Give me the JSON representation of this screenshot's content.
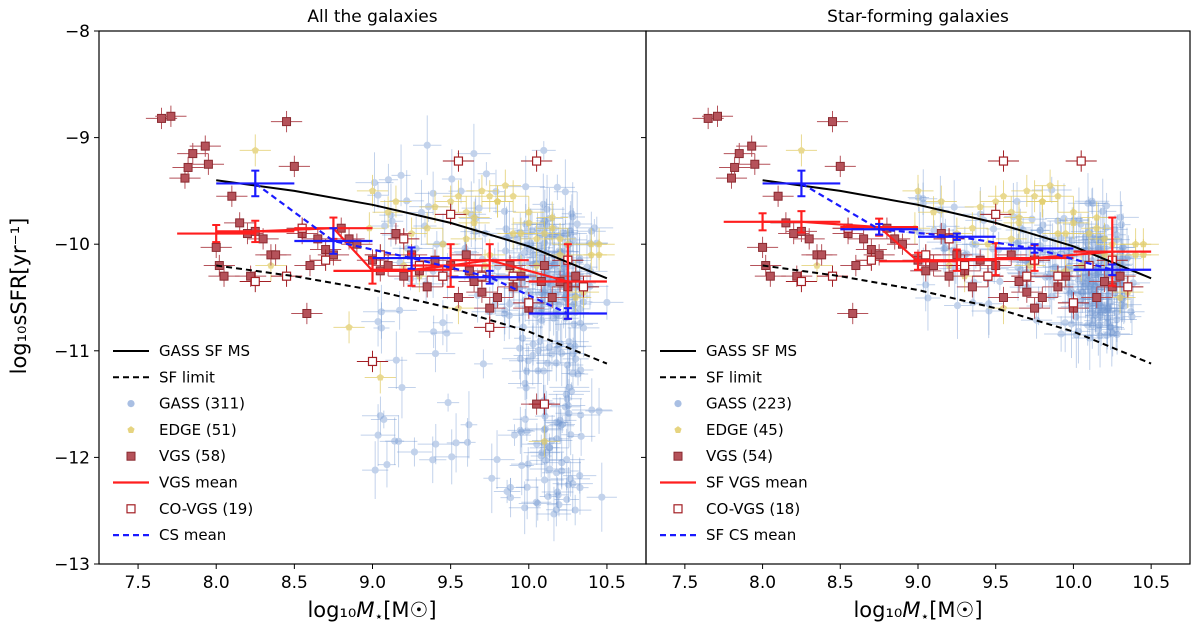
{
  "figure": {
    "ylabel": "log₁₀sSFR[yr⁻¹]",
    "xlabel_prefix": "log₁₀",
    "xlabel_symbol": "M",
    "xlabel_sub": "⋆",
    "xlabel_unit": "[M☉]"
  },
  "colors": {
    "gass": "#6f95d0",
    "edge": "#e2cd6a",
    "vgs": "#b5525a",
    "vgs_mean": "#ff1e1e",
    "cs_mean": "#1a1aff",
    "gass_ms": "#000000",
    "co_vgs": "#a31f24"
  },
  "chart_data": [
    {
      "type": "scatter",
      "title": "All the galaxies",
      "xlim": [
        7.25,
        10.75
      ],
      "ylim": [
        -13,
        -8
      ],
      "xticks": [
        "7.5",
        "8.0",
        "8.5",
        "9.0",
        "9.5",
        "10.0",
        "10.5"
      ],
      "yticks": [
        "−8",
        "−9",
        "−10",
        "−11",
        "−12",
        "−13"
      ],
      "xtick_values": [
        7.5,
        8.0,
        8.5,
        9.0,
        9.5,
        10.0,
        10.5
      ],
      "ytick_values": [
        -8,
        -9,
        -10,
        -11,
        -12,
        -13
      ],
      "legend": {
        "position": "lower-left",
        "entries": [
          {
            "key": "gass_ms",
            "label": "GASS SF MS"
          },
          {
            "key": "sf_limit",
            "label": "SF limit"
          },
          {
            "key": "gass",
            "label": "GASS (311)"
          },
          {
            "key": "edge",
            "label": "EDGE (51)"
          },
          {
            "key": "vgs",
            "label": "VGS (58)"
          },
          {
            "key": "vgs_mean",
            "label": "VGS mean"
          },
          {
            "key": "co_vgs",
            "label": "CO-VGS (19)"
          },
          {
            "key": "cs_mean",
            "label": "CS mean"
          }
        ]
      },
      "gass_ms_line": {
        "x": [
          8.0,
          8.5,
          9.0,
          9.5,
          10.0,
          10.5
        ],
        "y": [
          -9.4,
          -9.5,
          -9.63,
          -9.8,
          -10.02,
          -10.32
        ]
      },
      "sf_limit_line": {
        "x": [
          8.0,
          8.5,
          9.0,
          9.5,
          10.0,
          10.5
        ],
        "y": [
          -10.2,
          -10.3,
          -10.43,
          -10.6,
          -10.82,
          -11.12
        ]
      },
      "vgs_mean": {
        "x": [
          8.0,
          8.25,
          8.75,
          9.0,
          9.25,
          9.5,
          9.75,
          10.25
        ],
        "y": [
          -9.9,
          -9.88,
          -9.85,
          -10.25,
          -10.24,
          -10.2,
          -10.15,
          -10.35
        ],
        "yerr": [
          0.08,
          0.1,
          0.1,
          0.12,
          0.15,
          0.2,
          0.15,
          0.35
        ],
        "xerr": [
          0.25,
          0.25,
          0.25,
          0.25,
          0.25,
          0.25,
          0.25,
          0.25
        ]
      },
      "cs_mean": {
        "x": [
          8.25,
          8.75,
          9.25,
          9.75,
          10.25
        ],
        "y": [
          -9.43,
          -9.97,
          -10.13,
          -10.31,
          -10.65
        ],
        "yerr": [
          0.12,
          0.12,
          0.1,
          0.06,
          0.05
        ],
        "xerr": [
          0.25,
          0.25,
          0.25,
          0.25,
          0.25
        ]
      },
      "vgs_points": {
        "x": [
          7.65,
          7.71,
          7.8,
          7.82,
          7.85,
          7.93,
          7.95,
          8.0,
          8.02,
          8.05,
          8.1,
          8.15,
          8.2,
          8.25,
          8.3,
          8.35,
          8.45,
          8.5,
          8.55,
          8.6,
          8.65,
          8.7,
          8.75,
          8.8,
          8.85,
          8.9,
          9.0,
          9.05,
          9.1,
          9.15,
          9.2,
          9.25,
          9.3,
          9.35,
          9.4,
          9.45,
          9.5,
          9.55,
          9.6,
          9.65,
          9.7,
          9.75,
          9.8,
          9.9,
          9.95,
          10.0,
          10.05,
          10.1,
          10.15,
          10.2,
          10.25,
          10.3,
          8.22,
          8.38,
          8.58,
          9.62,
          9.88,
          10.08
        ],
        "y": [
          -8.82,
          -8.8,
          -9.38,
          -9.28,
          -9.15,
          -9.08,
          -9.25,
          -10.03,
          -10.2,
          -10.3,
          -9.55,
          -9.8,
          -9.9,
          -9.88,
          -9.95,
          -10.1,
          -8.85,
          -9.27,
          -9.9,
          -10.2,
          -9.95,
          -10.05,
          -10.1,
          -9.85,
          -9.95,
          -10.0,
          -10.15,
          -10.25,
          -10.2,
          -9.9,
          -10.3,
          -10.1,
          -10.25,
          -10.4,
          -10.15,
          -10.3,
          -10.2,
          -10.5,
          -10.1,
          -10.35,
          -10.45,
          -10.6,
          -10.5,
          -10.4,
          -10.3,
          -10.6,
          -11.5,
          -10.2,
          -10.5,
          -10.35,
          -10.4,
          -10.3,
          -10.3,
          -10.1,
          -10.65,
          -10.25,
          -10.2,
          -10.35
        ],
        "xerr": 0.1,
        "yerr": 0.1
      },
      "co_vgs_points": {
        "x": [
          8.25,
          8.45,
          8.55,
          8.7,
          9.0,
          9.05,
          9.2,
          9.3,
          9.45,
          9.5,
          9.55,
          9.7,
          9.75,
          9.9,
          10.0,
          10.05,
          10.1,
          10.25,
          10.35
        ],
        "y": [
          -10.35,
          -10.3,
          -9.85,
          -10.15,
          -11.1,
          -10.1,
          -9.95,
          -10.2,
          -10.3,
          -9.72,
          -9.22,
          -10.3,
          -10.78,
          -10.3,
          -10.55,
          -9.22,
          -11.5,
          -10.15,
          -10.4
        ],
        "xerr": 0.1,
        "yerr": 0.1
      },
      "edge_points": {
        "x": [
          8.25,
          8.85,
          9.05,
          9.15,
          9.25,
          9.35,
          9.45,
          9.5,
          9.55,
          9.6,
          9.65,
          9.7,
          9.75,
          9.8,
          9.85,
          9.9,
          9.95,
          10.0,
          10.05,
          10.1,
          10.15,
          10.2,
          10.25,
          10.3,
          10.35,
          10.4,
          10.45,
          8.35,
          9.0,
          9.3,
          9.55,
          9.72,
          9.95,
          10.1,
          10.3,
          10.45,
          8.98,
          9.1,
          9.9,
          10.2,
          9.4,
          9.65,
          9.8,
          10.0,
          10.15,
          10.4,
          9.2,
          9.6,
          9.75,
          10.05,
          10.25
        ],
        "y": [
          -9.12,
          -10.78,
          -11.25,
          -9.6,
          -9.9,
          -9.85,
          -10.0,
          -9.6,
          -9.55,
          -9.7,
          -9.8,
          -9.5,
          -9.55,
          -9.6,
          -9.45,
          -9.55,
          -9.9,
          -9.8,
          -10.2,
          -9.9,
          -9.75,
          -9.95,
          -10.0,
          -10.3,
          -10.45,
          -10.0,
          -10.1,
          -10.2,
          -9.5,
          -10.3,
          -10.6,
          -10.2,
          -10.25,
          -11.85,
          -10.5,
          -10.0,
          -9.85,
          -9.7,
          -9.9,
          -10.1,
          -9.65,
          -9.75,
          -9.6,
          -9.7,
          -9.85,
          -10.1,
          -10.2,
          -9.95,
          -10.1,
          -9.95,
          -10.4
        ],
        "xerr": 0.1,
        "yerr": 0.15
      }
    },
    {
      "type": "scatter",
      "title": "Star-forming galaxies",
      "xlim": [
        7.25,
        10.75
      ],
      "ylim": [
        -13,
        -8
      ],
      "xticks": [
        "7.5",
        "8.0",
        "8.5",
        "9.0",
        "9.5",
        "10.0",
        "10.5"
      ],
      "yticks": [],
      "xtick_values": [
        7.5,
        8.0,
        8.5,
        9.0,
        9.5,
        10.0,
        10.5
      ],
      "ytick_values": [
        -8,
        -9,
        -10,
        -11,
        -12,
        -13
      ],
      "legend": {
        "position": "lower-left",
        "entries": [
          {
            "key": "gass_ms",
            "label": "GASS SF MS"
          },
          {
            "key": "sf_limit",
            "label": "SF limit"
          },
          {
            "key": "gass",
            "label": "GASS (223)"
          },
          {
            "key": "edge",
            "label": "EDGE (45)"
          },
          {
            "key": "vgs",
            "label": "VGS (54)"
          },
          {
            "key": "vgs_mean",
            "label": "SF VGS mean"
          },
          {
            "key": "co_vgs",
            "label": "CO-VGS (18)"
          },
          {
            "key": "cs_mean",
            "label": "SF CS mean"
          }
        ]
      },
      "gass_ms_line": {
        "x": [
          8.0,
          8.5,
          9.0,
          9.5,
          10.0,
          10.5
        ],
        "y": [
          -9.4,
          -9.5,
          -9.63,
          -9.8,
          -10.02,
          -10.32
        ]
      },
      "sf_limit_line": {
        "x": [
          8.0,
          8.5,
          9.0,
          9.5,
          10.0,
          10.5
        ],
        "y": [
          -10.2,
          -10.3,
          -10.43,
          -10.6,
          -10.82,
          -11.12
        ]
      },
      "vgs_mean": {
        "x": [
          8.0,
          8.25,
          8.75,
          9.0,
          9.25,
          9.5,
          9.75,
          10.25
        ],
        "y": [
          -9.79,
          -9.79,
          -9.84,
          -10.16,
          -10.15,
          -10.14,
          -10.13,
          -10.07
        ],
        "yerr": [
          0.08,
          0.1,
          0.08,
          0.08,
          0.1,
          0.15,
          0.12,
          0.32
        ],
        "xerr": [
          0.25,
          0.25,
          0.25,
          0.25,
          0.25,
          0.25,
          0.25,
          0.25
        ]
      },
      "cs_mean": {
        "x": [
          8.25,
          8.75,
          9.25,
          9.75,
          10.25
        ],
        "y": [
          -9.43,
          -9.86,
          -9.93,
          -10.04,
          -10.24
        ],
        "yerr": [
          0.12,
          0.05,
          0.03,
          0.04,
          0.05
        ],
        "xerr": [
          0.25,
          0.25,
          0.25,
          0.25,
          0.25
        ]
      },
      "vgs_points": {
        "x": [
          7.65,
          7.71,
          7.8,
          7.82,
          7.85,
          7.93,
          7.95,
          8.0,
          8.02,
          8.05,
          8.1,
          8.15,
          8.2,
          8.25,
          8.3,
          8.35,
          8.45,
          8.5,
          8.55,
          8.6,
          8.65,
          8.7,
          8.75,
          8.8,
          8.85,
          8.9,
          9.0,
          9.05,
          9.1,
          9.15,
          9.2,
          9.25,
          9.3,
          9.35,
          9.4,
          9.45,
          9.5,
          9.55,
          9.6,
          9.65,
          9.7,
          9.75,
          9.8,
          9.9,
          9.95,
          10.0,
          10.1,
          10.15,
          10.2,
          10.25,
          10.3,
          8.22,
          8.38,
          8.58
        ],
        "y": [
          -8.82,
          -8.8,
          -9.38,
          -9.28,
          -9.15,
          -9.08,
          -9.25,
          -10.03,
          -10.2,
          -10.3,
          -9.55,
          -9.8,
          -9.9,
          -9.88,
          -9.95,
          -10.1,
          -8.85,
          -9.27,
          -9.9,
          -10.2,
          -9.95,
          -10.05,
          -10.1,
          -9.85,
          -9.95,
          -10.0,
          -10.15,
          -10.25,
          -10.2,
          -9.9,
          -10.3,
          -10.1,
          -10.25,
          -10.4,
          -10.15,
          -10.3,
          -10.2,
          -10.5,
          -10.1,
          -10.35,
          -10.45,
          -10.6,
          -10.5,
          -10.4,
          -10.3,
          -10.6,
          -10.2,
          -10.5,
          -10.35,
          -10.4,
          -10.3,
          -10.3,
          -10.1,
          -10.65
        ],
        "xerr": 0.1,
        "yerr": 0.1
      },
      "co_vgs_points": {
        "x": [
          8.25,
          8.45,
          8.55,
          8.7,
          9.05,
          9.2,
          9.3,
          9.45,
          9.5,
          9.55,
          9.7,
          9.75,
          9.9,
          10.0,
          10.05,
          10.1,
          10.25,
          10.35
        ],
        "y": [
          -10.35,
          -10.3,
          -9.85,
          -10.15,
          -10.1,
          -9.95,
          -10.2,
          -10.3,
          -9.72,
          -9.22,
          -10.3,
          -10.15,
          -10.3,
          -10.55,
          -9.22,
          -10.2,
          -10.15,
          -10.4
        ],
        "xerr": 0.1,
        "yerr": 0.1
      },
      "edge_points": {
        "x": [
          8.25,
          9.15,
          9.25,
          9.35,
          9.45,
          9.5,
          9.55,
          9.6,
          9.65,
          9.7,
          9.75,
          9.8,
          9.85,
          9.9,
          9.95,
          10.0,
          10.05,
          10.1,
          10.15,
          10.2,
          10.25,
          10.3,
          10.35,
          10.4,
          10.45,
          8.35,
          9.0,
          9.3,
          9.55,
          9.72,
          9.95,
          10.3,
          10.45,
          8.98,
          9.1,
          9.9,
          10.2,
          9.4,
          9.65,
          9.8,
          10.0,
          10.15,
          10.4,
          9.2,
          9.6
        ],
        "y": [
          -9.12,
          -9.6,
          -9.9,
          -9.85,
          -10.0,
          -9.6,
          -9.55,
          -9.7,
          -9.8,
          -9.5,
          -9.55,
          -9.6,
          -9.45,
          -9.55,
          -9.9,
          -9.8,
          -10.2,
          -9.9,
          -9.75,
          -9.95,
          -10.0,
          -10.3,
          -10.45,
          -10.0,
          -10.1,
          -10.2,
          -9.5,
          -10.3,
          -10.6,
          -10.2,
          -10.25,
          -10.5,
          -10.0,
          -9.85,
          -9.7,
          -9.9,
          -10.1,
          -9.65,
          -9.75,
          -9.6,
          -9.7,
          -9.85,
          -10.1,
          -10.2,
          -9.95
        ],
        "xerr": 0.1,
        "yerr": 0.15
      }
    }
  ]
}
